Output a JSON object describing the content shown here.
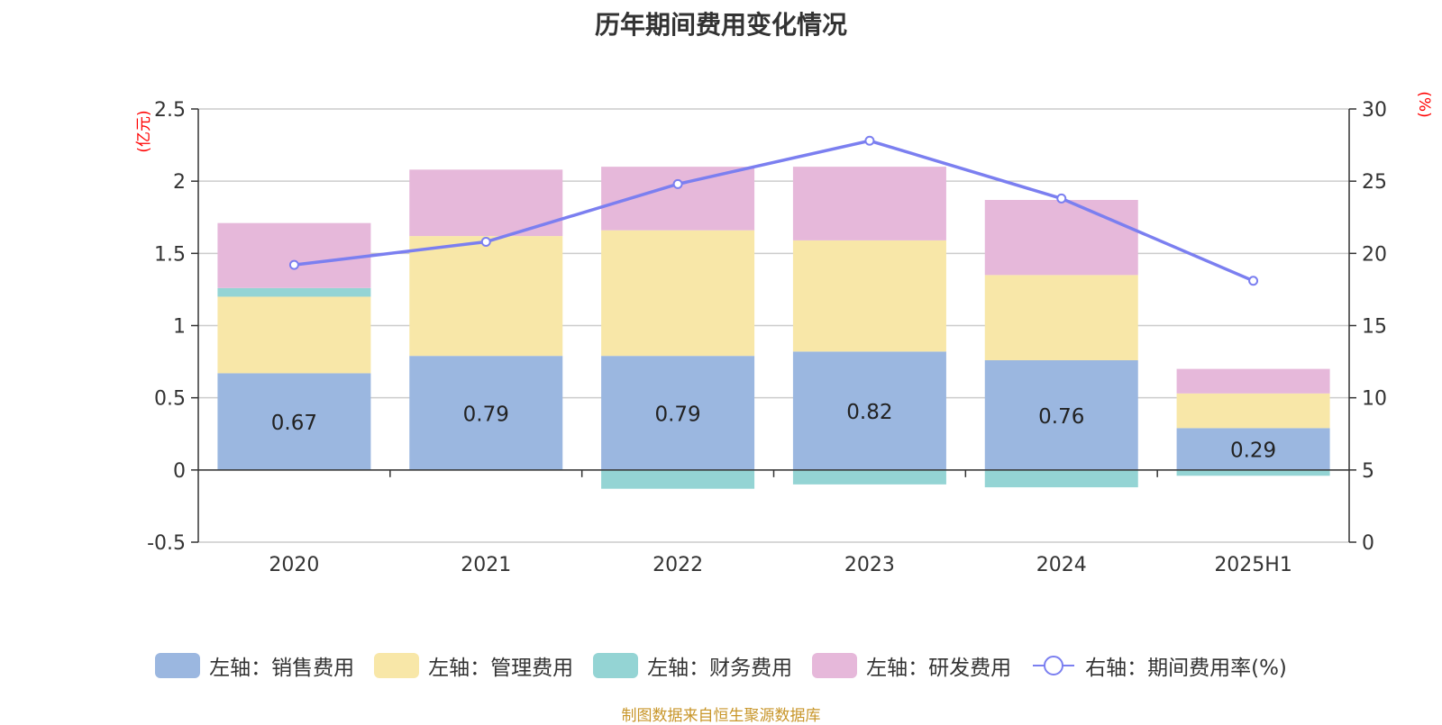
{
  "chart_data": {
    "type": "bar",
    "title": "历年期间费用变化情况",
    "categories": [
      "2020",
      "2021",
      "2022",
      "2023",
      "2024",
      "2025H1"
    ],
    "series": [
      {
        "name": "左轴：销售费用",
        "axis": "left",
        "type": "bar",
        "color": "#9bb7e0",
        "values": [
          0.67,
          0.79,
          0.79,
          0.82,
          0.76,
          0.29
        ],
        "labels": [
          "0.67",
          "0.79",
          "0.79",
          "0.82",
          "0.76",
          "0.29"
        ]
      },
      {
        "name": "左轴：管理费用",
        "axis": "left",
        "type": "bar",
        "color": "#f8e7a8",
        "values": [
          0.53,
          0.83,
          0.87,
          0.77,
          0.59,
          0.24
        ]
      },
      {
        "name": "左轴：财务费用",
        "axis": "left",
        "type": "bar",
        "color": "#94d4d4",
        "values": [
          0.06,
          0.0,
          -0.13,
          -0.1,
          -0.12,
          -0.04
        ]
      },
      {
        "name": "左轴：研发费用",
        "axis": "left",
        "type": "bar",
        "color": "#e6b8da",
        "values": [
          0.45,
          0.46,
          0.44,
          0.51,
          0.52,
          0.17
        ]
      },
      {
        "name": "右轴：期间费用率(%)",
        "axis": "right",
        "type": "line",
        "color": "#7b7ff0",
        "values": [
          19.2,
          20.8,
          24.8,
          27.8,
          23.8,
          18.1
        ]
      }
    ],
    "y_left": {
      "label": "(亿元)",
      "min": -0.5,
      "max": 2.5,
      "ticks": [
        "-0.5",
        "0",
        "0.5",
        "1",
        "1.5",
        "2",
        "2.5"
      ]
    },
    "y_right": {
      "label": "(%)",
      "min": 0,
      "max": 30,
      "ticks": [
        "0",
        "5",
        "10",
        "15",
        "20",
        "25",
        "30"
      ]
    },
    "grid": true,
    "legend_position": "bottom"
  },
  "source_note": "制图数据来自恒生聚源数据库"
}
